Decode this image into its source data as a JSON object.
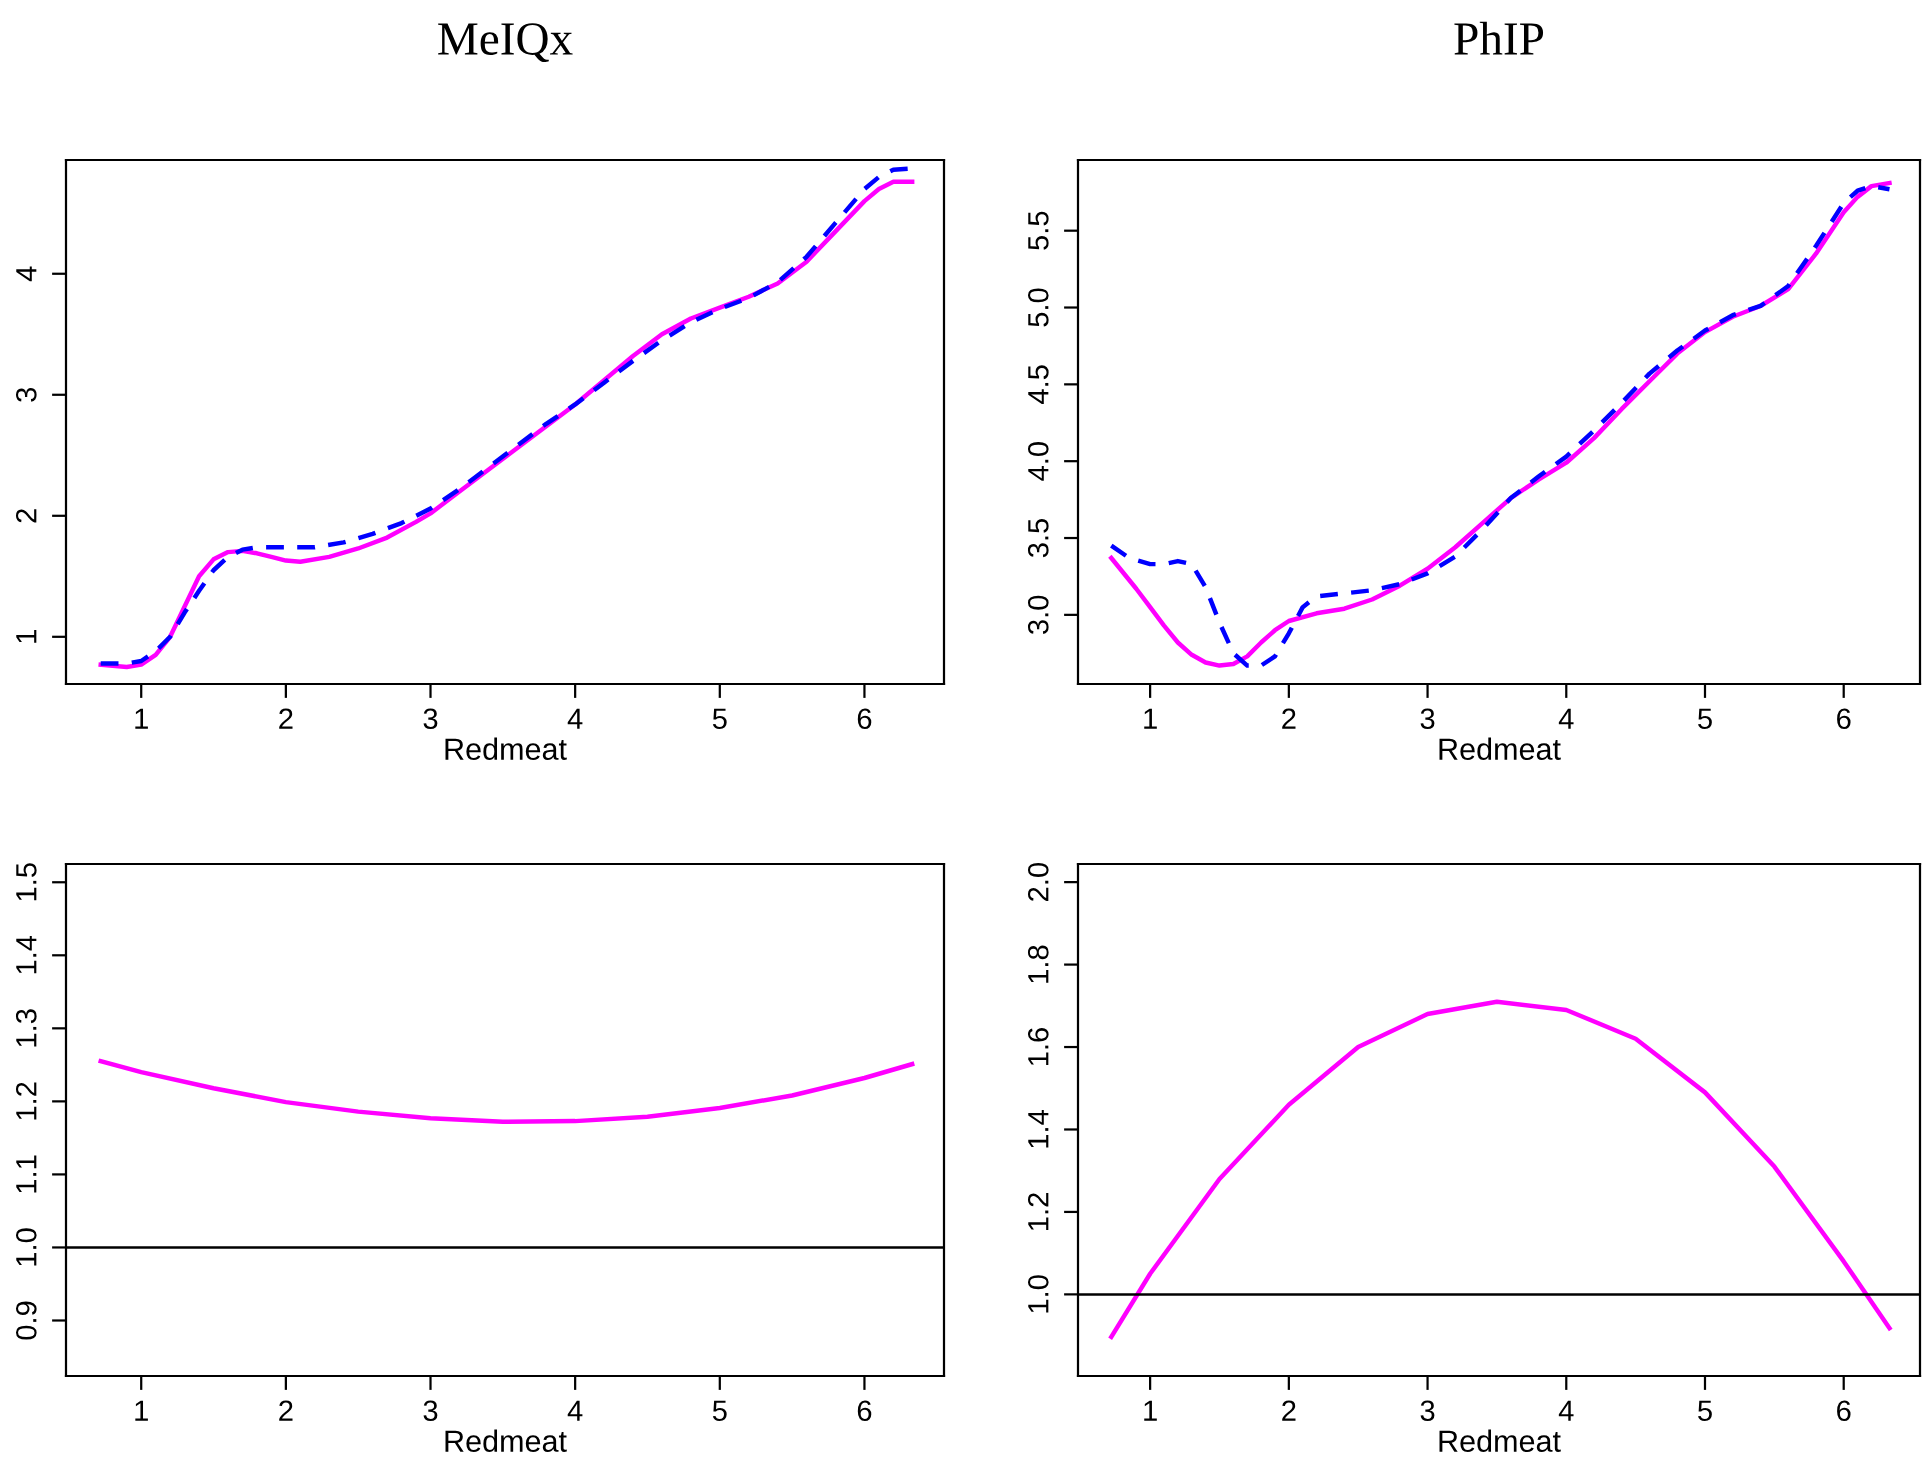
{
  "chart_data": [
    {
      "type": "line",
      "title": "MeIQx",
      "xlabel": "Redmeat",
      "xlim": [
        0.48,
        6.55
      ],
      "ylim": [
        0.61,
        4.94
      ],
      "xticks": [
        1,
        2,
        3,
        4,
        5,
        6
      ],
      "yticks": [
        1,
        2,
        3,
        4
      ],
      "grid": false,
      "legend": false,
      "series": [
        {
          "color": "#ff00ff",
          "line_style": "solid",
          "x": [
            0.72,
            0.9,
            1.0,
            1.1,
            1.2,
            1.3,
            1.4,
            1.5,
            1.6,
            1.7,
            1.8,
            1.9,
            2.0,
            2.1,
            2.3,
            2.5,
            2.7,
            2.9,
            3.0,
            3.2,
            3.4,
            3.6,
            3.8,
            4.0,
            4.2,
            4.4,
            4.6,
            4.8,
            5.0,
            5.2,
            5.4,
            5.6,
            5.8,
            6.0,
            6.1,
            6.2,
            6.33
          ],
          "values": [
            0.77,
            0.75,
            0.77,
            0.85,
            1.0,
            1.25,
            1.5,
            1.64,
            1.7,
            1.71,
            1.69,
            1.66,
            1.63,
            1.62,
            1.66,
            1.73,
            1.82,
            1.95,
            2.02,
            2.2,
            2.38,
            2.56,
            2.74,
            2.92,
            3.12,
            3.32,
            3.5,
            3.63,
            3.72,
            3.81,
            3.92,
            4.1,
            4.35,
            4.6,
            4.7,
            4.76,
            4.76
          ]
        },
        {
          "color": "#0000ff",
          "line_style": "dashed",
          "x": [
            0.72,
            0.9,
            1.0,
            1.1,
            1.2,
            1.3,
            1.4,
            1.5,
            1.6,
            1.7,
            1.8,
            2.0,
            2.2,
            2.4,
            2.6,
            2.8,
            3.0,
            3.2,
            3.4,
            3.6,
            3.8,
            4.0,
            4.2,
            4.4,
            4.6,
            4.8,
            5.0,
            5.2,
            5.4,
            5.6,
            5.8,
            6.0,
            6.1,
            6.2,
            6.33
          ],
          "values": [
            0.78,
            0.78,
            0.8,
            0.88,
            1.0,
            1.2,
            1.38,
            1.55,
            1.66,
            1.72,
            1.74,
            1.74,
            1.74,
            1.78,
            1.85,
            1.94,
            2.06,
            2.22,
            2.4,
            2.58,
            2.76,
            2.92,
            3.1,
            3.28,
            3.45,
            3.6,
            3.71,
            3.8,
            3.93,
            4.14,
            4.42,
            4.7,
            4.8,
            4.86,
            4.87
          ]
        }
      ]
    },
    {
      "type": "line",
      "title": "PhIP",
      "xlabel": "Redmeat",
      "xlim": [
        0.48,
        6.55
      ],
      "ylim": [
        2.55,
        5.96
      ],
      "xticks": [
        1,
        2,
        3,
        4,
        5,
        6
      ],
      "yticks": [
        {
          "value": 3,
          "label": "3.0"
        },
        3.5,
        {
          "value": 4,
          "label": "4.0"
        },
        4.5,
        {
          "value": 5,
          "label": "5.0"
        },
        5.5
      ],
      "grid": false,
      "legend": false,
      "series": [
        {
          "color": "#ff00ff",
          "line_style": "solid",
          "x": [
            0.72,
            0.9,
            1.0,
            1.1,
            1.2,
            1.3,
            1.4,
            1.5,
            1.6,
            1.7,
            1.8,
            1.9,
            2.0,
            2.2,
            2.4,
            2.6,
            2.8,
            3.0,
            3.2,
            3.4,
            3.6,
            3.8,
            4.0,
            4.2,
            4.4,
            4.6,
            4.8,
            5.0,
            5.2,
            5.4,
            5.6,
            5.8,
            6.0,
            6.1,
            6.2,
            6.33
          ],
          "values": [
            3.37,
            3.17,
            3.05,
            2.93,
            2.82,
            2.74,
            2.69,
            2.67,
            2.68,
            2.73,
            2.82,
            2.9,
            2.96,
            3.01,
            3.04,
            3.1,
            3.19,
            3.3,
            3.44,
            3.6,
            3.76,
            3.88,
            3.99,
            4.15,
            4.34,
            4.52,
            4.7,
            4.84,
            4.94,
            5.01,
            5.12,
            5.35,
            5.62,
            5.72,
            5.79,
            5.81
          ]
        },
        {
          "color": "#0000ff",
          "line_style": "dashed",
          "x": [
            0.72,
            0.85,
            1.0,
            1.1,
            1.2,
            1.3,
            1.4,
            1.5,
            1.6,
            1.7,
            1.8,
            1.9,
            2.0,
            2.1,
            2.2,
            2.4,
            2.6,
            2.8,
            3.0,
            3.2,
            3.4,
            3.6,
            3.8,
            4.0,
            4.2,
            4.4,
            4.6,
            4.8,
            5.0,
            5.2,
            5.4,
            5.6,
            5.8,
            6.0,
            6.1,
            6.2,
            6.33
          ],
          "values": [
            3.45,
            3.37,
            3.33,
            3.33,
            3.35,
            3.33,
            3.18,
            2.95,
            2.75,
            2.67,
            2.67,
            2.73,
            2.88,
            3.05,
            3.12,
            3.14,
            3.16,
            3.2,
            3.27,
            3.38,
            3.56,
            3.76,
            3.9,
            4.03,
            4.2,
            4.38,
            4.57,
            4.72,
            4.85,
            4.95,
            5.01,
            5.14,
            5.4,
            5.68,
            5.76,
            5.79,
            5.77
          ]
        }
      ]
    },
    {
      "type": "line",
      "xlabel": "Redmeat",
      "xlim": [
        0.48,
        6.55
      ],
      "ylim": [
        0.824,
        1.525
      ],
      "xticks": [
        1,
        2,
        3,
        4,
        5,
        6
      ],
      "yticks": [
        0.9,
        {
          "value": 1,
          "label": "1.0"
        },
        1.1,
        1.2,
        1.3,
        1.4,
        1.5
      ],
      "grid": false,
      "legend": false,
      "ref_lines": [
        {
          "axis": "y",
          "value": 1,
          "color": "#000000"
        }
      ],
      "series": [
        {
          "color": "#ff00ff",
          "line_style": "solid",
          "x": [
            0.72,
            1.0,
            1.5,
            2.0,
            2.5,
            3.0,
            3.5,
            4.0,
            4.5,
            5.0,
            5.5,
            6.0,
            6.33
          ],
          "values": [
            1.255,
            1.24,
            1.218,
            1.199,
            1.186,
            1.177,
            1.172,
            1.173,
            1.179,
            1.191,
            1.208,
            1.232,
            1.251
          ]
        }
      ]
    },
    {
      "type": "line",
      "xlabel": "Redmeat",
      "xlim": [
        0.48,
        6.55
      ],
      "ylim": [
        0.802,
        2.044
      ],
      "xticks": [
        1,
        2,
        3,
        4,
        5,
        6
      ],
      "yticks": [
        {
          "value": 1,
          "label": "1.0"
        },
        1.2,
        1.4,
        1.6,
        1.8,
        {
          "value": 2,
          "label": "2.0"
        }
      ],
      "grid": false,
      "legend": false,
      "ref_lines": [
        {
          "axis": "y",
          "value": 1,
          "color": "#000000"
        }
      ],
      "series": [
        {
          "color": "#ff00ff",
          "line_style": "solid",
          "x": [
            0.72,
            1.0,
            1.5,
            2.0,
            2.5,
            3.0,
            3.5,
            4.0,
            4.5,
            5.0,
            5.5,
            6.0,
            6.33
          ],
          "values": [
            0.897,
            1.05,
            1.28,
            1.46,
            1.6,
            1.68,
            1.71,
            1.69,
            1.62,
            1.49,
            1.31,
            1.08,
            0.918
          ]
        }
      ]
    }
  ]
}
